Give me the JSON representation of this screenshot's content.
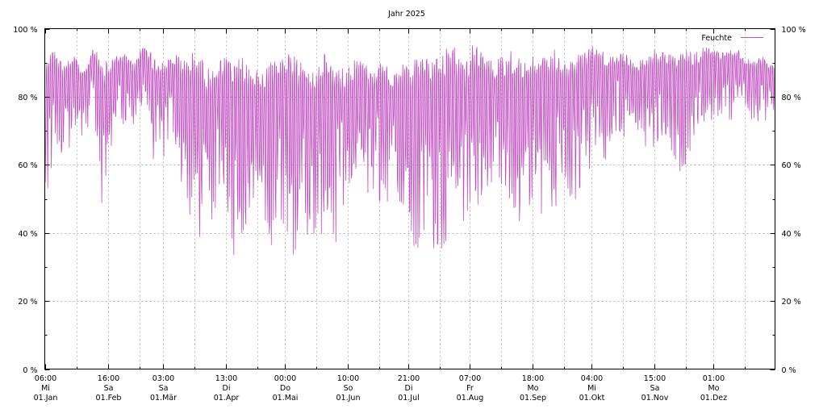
{
  "chart_data": {
    "type": "line",
    "title": "Jahr 2025",
    "ylim": [
      0,
      100
    ],
    "y_ticks": [
      0,
      20,
      40,
      60,
      80,
      100
    ],
    "y_tick_labels": [
      "0 %",
      "20 %",
      "40 %",
      "60 %",
      "80 %",
      "100 %"
    ],
    "y2_tick_labels": [
      "0 %",
      "20 %",
      "40 %",
      "60 %",
      "80 %",
      "100 %"
    ],
    "xlim": [
      "2025-01-01",
      "2025-12-31"
    ],
    "grid": true,
    "legend_position": "top-right",
    "x_tick_labels": [
      {
        "x": "2025-01-01T06:00",
        "time": "06:00",
        "weekday": "Mi",
        "date": "01.Jan"
      },
      {
        "x": "2025-02-01T16:00",
        "time": "16:00",
        "weekday": "Sa",
        "date": "01.Feb"
      },
      {
        "x": "2025-03-01T03:00",
        "time": "03:00",
        "weekday": "Sa",
        "date": "01.Mär"
      },
      {
        "x": "2025-04-01T13:00",
        "time": "13:00",
        "weekday": "Di",
        "date": "01.Apr"
      },
      {
        "x": "2025-05-01T00:00",
        "time": "00:00",
        "weekday": "Do",
        "date": "01.Mai"
      },
      {
        "x": "2025-06-01T10:00",
        "time": "10:00",
        "weekday": "So",
        "date": "01.Jun"
      },
      {
        "x": "2025-07-01T21:00",
        "time": "21:00",
        "weekday": "Di",
        "date": "01.Jul"
      },
      {
        "x": "2025-08-01T07:00",
        "time": "07:00",
        "weekday": "Fr",
        "date": "01.Aug"
      },
      {
        "x": "2025-09-01T18:00",
        "time": "18:00",
        "weekday": "Mo",
        "date": "01.Sep"
      },
      {
        "x": "2025-10-01T04:00",
        "time": "04:00",
        "weekday": "Mi",
        "date": "01.Okt"
      },
      {
        "x": "2025-11-01T15:00",
        "time": "15:00",
        "weekday": "Sa",
        "date": "01.Nov"
      },
      {
        "x": "2025-12-01T01:00",
        "time": "01:00",
        "weekday": "Mo",
        "date": "01.Dez"
      }
    ],
    "series": [
      {
        "name": "Feuchte",
        "color": "#c050c0",
        "unit": "%",
        "note_on_values": "daily min/max humidity range read from the dense trace",
        "x": [
          "01.01",
          "05.01",
          "10.01",
          "15.01",
          "20.01",
          "25.01",
          "30.01",
          "04.02",
          "09.02",
          "14.02",
          "19.02",
          "24.02",
          "01.03",
          "06.03",
          "11.03",
          "16.03",
          "21.03",
          "26.03",
          "31.03",
          "05.04",
          "10.04",
          "15.04",
          "20.04",
          "25.04",
          "30.04",
          "05.05",
          "10.05",
          "15.05",
          "20.05",
          "25.05",
          "30.05",
          "04.06",
          "09.06",
          "14.06",
          "19.06",
          "24.06",
          "29.06",
          "04.07",
          "09.07",
          "14.07",
          "19.07",
          "24.07",
          "29.07",
          "03.08",
          "08.08",
          "13.08",
          "18.08",
          "23.08",
          "28.08",
          "02.09",
          "07.09",
          "12.09",
          "17.09",
          "22.09",
          "27.09",
          "02.10",
          "07.10",
          "12.10",
          "17.10",
          "22.10",
          "27.10",
          "01.11",
          "06.11",
          "11.11",
          "16.11",
          "21.11",
          "26.11",
          "01.12",
          "06.12",
          "11.12",
          "16.12",
          "21.12",
          "26.12",
          "31.12"
        ],
        "min": [
          44,
          58,
          55,
          70,
          68,
          75,
          42,
          70,
          72,
          68,
          80,
          60,
          62,
          66,
          50,
          40,
          35,
          45,
          50,
          33,
          38,
          50,
          40,
          35,
          42,
          33,
          40,
          36,
          40,
          35,
          45,
          42,
          48,
          50,
          45,
          55,
          40,
          32,
          40,
          35,
          32,
          45,
          42,
          40,
          50,
          55,
          42,
          45,
          40,
          52,
          40,
          45,
          55,
          48,
          44,
          65,
          58,
          70,
          68,
          72,
          65,
          60,
          70,
          62,
          55,
          65,
          70,
          72,
          75,
          72,
          74,
          73,
          72,
          73
        ],
        "max": [
          95,
          94,
          90,
          92,
          88,
          95,
          90,
          92,
          93,
          90,
          96,
          92,
          90,
          93,
          91,
          95,
          90,
          88,
          92,
          90,
          92,
          88,
          90,
          92,
          93,
          92,
          90,
          88,
          94,
          90,
          88,
          92,
          90,
          88,
          92,
          86,
          90,
          91,
          92,
          90,
          94,
          95,
          90,
          96,
          92,
          90,
          93,
          94,
          90,
          92,
          93,
          94,
          90,
          91,
          95,
          95,
          94,
          92,
          93,
          90,
          91,
          94,
          93,
          92,
          94,
          93,
          95,
          94,
          93,
          95,
          92,
          91,
          92,
          90
        ]
      }
    ]
  }
}
